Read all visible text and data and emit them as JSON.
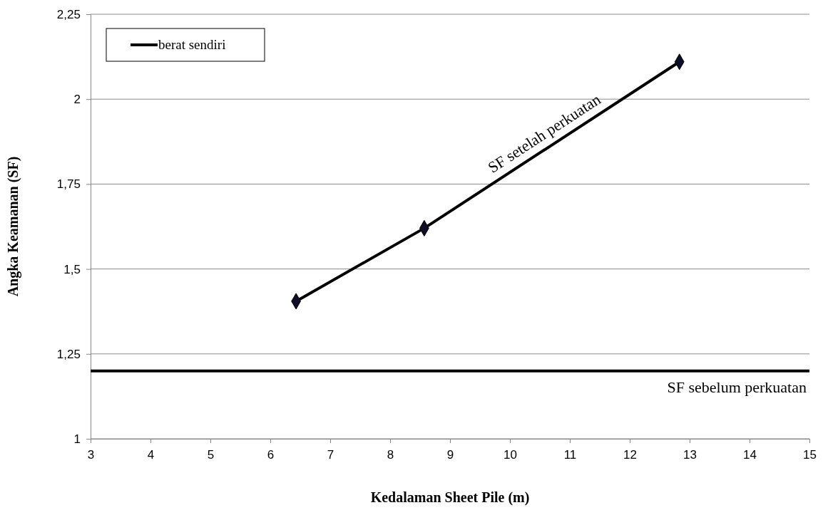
{
  "chart_data": {
    "type": "line",
    "xlabel": "Kedalaman Sheet Pile (m)",
    "ylabel": "Angka Keamanan (SF)",
    "series": [
      {
        "name": "berat sendiri",
        "color": "#000000",
        "x": [
          6.43,
          8.57,
          12.83
        ],
        "values": [
          1.405,
          1.62,
          2.11
        ]
      }
    ],
    "xlim": [
      3,
      15
    ],
    "xticks": [
      3,
      4,
      5,
      6,
      7,
      8,
      9,
      10,
      11,
      12,
      13,
      14,
      15
    ],
    "ylim": [
      1,
      2.25
    ],
    "yticks": [
      {
        "value": 1,
        "label": "1"
      },
      {
        "value": 1.25,
        "label": "1,25"
      },
      {
        "value": 1.5,
        "label": "1,5"
      },
      {
        "value": 1.75,
        "label": "1,75"
      },
      {
        "value": 2,
        "label": "2"
      },
      {
        "value": 2.25,
        "label": "2,25"
      }
    ],
    "ref_lines": [
      {
        "axis": "y",
        "value": 1.2,
        "label": "SF sebelum perkuatan",
        "color": "#000000"
      }
    ],
    "annotations": [
      "SF setelah perkuatan"
    ],
    "grid": "y",
    "legend": "top left",
    "marker": "diamond",
    "line_style": "solid"
  }
}
